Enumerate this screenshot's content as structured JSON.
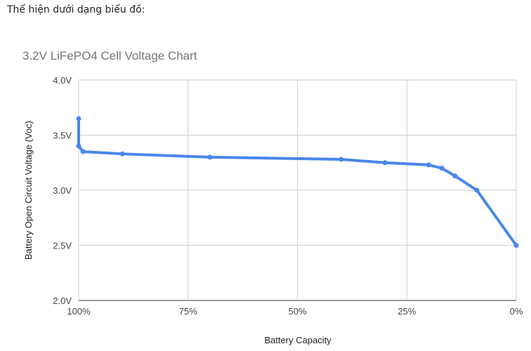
{
  "intro_text": "Thể hiện dưới dạng biểu đồ:",
  "chart_data": {
    "type": "line",
    "title": "3.2V LiFePO4 Cell Voltage Chart",
    "xlabel": "Battery Capacity",
    "ylabel": "Battery Open Circuit Voltage (Voc)",
    "xlim": [
      100,
      0
    ],
    "ylim": [
      2.0,
      4.0
    ],
    "x_reversed": true,
    "x_ticks": [
      {
        "v": 100,
        "label": "100%"
      },
      {
        "v": 75,
        "label": "75%"
      },
      {
        "v": 50,
        "label": "50%"
      },
      {
        "v": 25,
        "label": "25%"
      },
      {
        "v": 0,
        "label": "0%"
      }
    ],
    "y_ticks": [
      {
        "v": 4.0,
        "label": "4.0V"
      },
      {
        "v": 3.5,
        "label": "3.5V"
      },
      {
        "v": 3.0,
        "label": "3.0V"
      },
      {
        "v": 2.5,
        "label": "2.5V"
      },
      {
        "v": 2.0,
        "label": "2.0V"
      }
    ],
    "grid": true,
    "color": "#4a86e8",
    "x": [
      100,
      100,
      99,
      90,
      70,
      40,
      30,
      20,
      17,
      14,
      9,
      0
    ],
    "y": [
      3.65,
      3.4,
      3.35,
      3.33,
      3.3,
      3.28,
      3.25,
      3.23,
      3.2,
      3.13,
      3.0,
      2.5
    ]
  }
}
